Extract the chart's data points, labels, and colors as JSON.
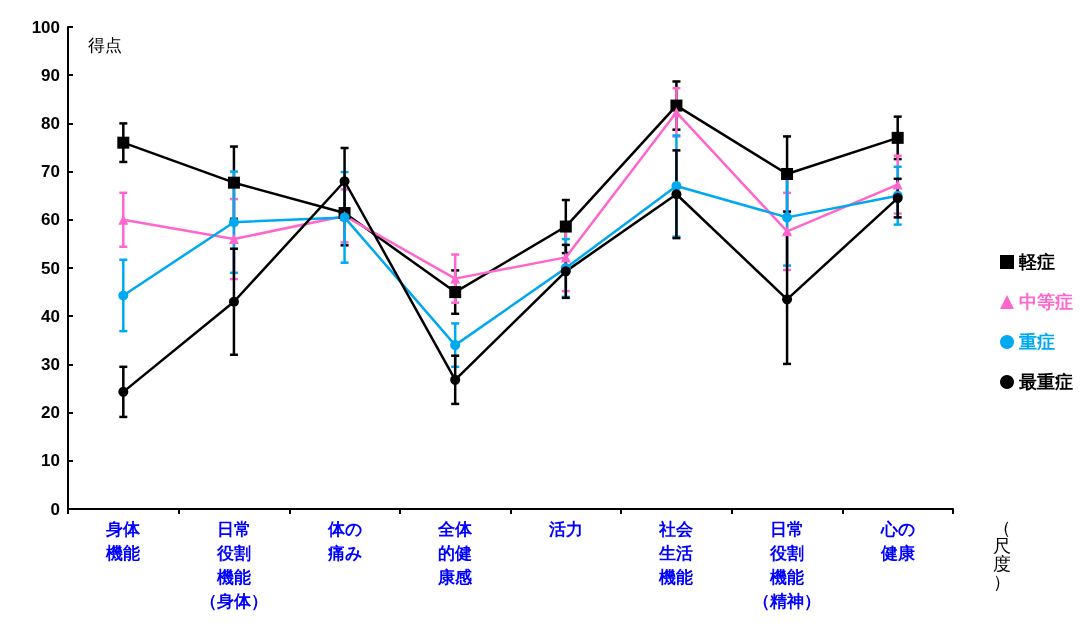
{
  "chart_data": {
    "type": "line",
    "ylabel": "得点",
    "xlabel": "（尺度）",
    "categories": [
      "身体機能",
      "日常役割機能（身体）",
      "体の痛み",
      "全体的健康感",
      "活力",
      "社会生活機能",
      "日常役割機能（精神）",
      "心の健康"
    ],
    "series": [
      {
        "name": "軽症",
        "color": "#000000",
        "marker": "square",
        "values": [
          76,
          67.7,
          61.4,
          45,
          58.6,
          83.7,
          69.5,
          77
        ],
        "errors": [
          4,
          7.5,
          6.7,
          4.5,
          5.5,
          5,
          7.8,
          4.4
        ]
      },
      {
        "name": "中等症",
        "color": "#ff66cc",
        "marker": "triangle",
        "values": [
          60,
          56,
          60.8,
          47.8,
          52.2,
          82.3,
          57.6,
          67.3
        ],
        "errors": [
          5.6,
          8.3,
          5.5,
          5,
          7,
          5,
          8,
          6
        ]
      },
      {
        "name": "重症",
        "color": "#00a8f0",
        "marker": "circle",
        "values": [
          44.3,
          59.5,
          60.5,
          34,
          50,
          67,
          60.5,
          65
        ],
        "errors": [
          7.4,
          10.5,
          9.4,
          4.5,
          6,
          10.5,
          10,
          6
        ]
      },
      {
        "name": "最重症",
        "color": "#000000",
        "marker": "circle",
        "values": [
          24.3,
          43,
          68,
          26.8,
          49.3,
          65.3,
          43.5,
          64.5
        ],
        "errors": [
          5.2,
          11,
          6.9,
          5,
          5.5,
          9.1,
          13.4,
          4
        ]
      }
    ],
    "ylim": [
      0,
      100
    ],
    "yticks": [
      0,
      10,
      20,
      30,
      40,
      50,
      60,
      70,
      80,
      90,
      100
    ],
    "grid": false,
    "legend": "right"
  }
}
